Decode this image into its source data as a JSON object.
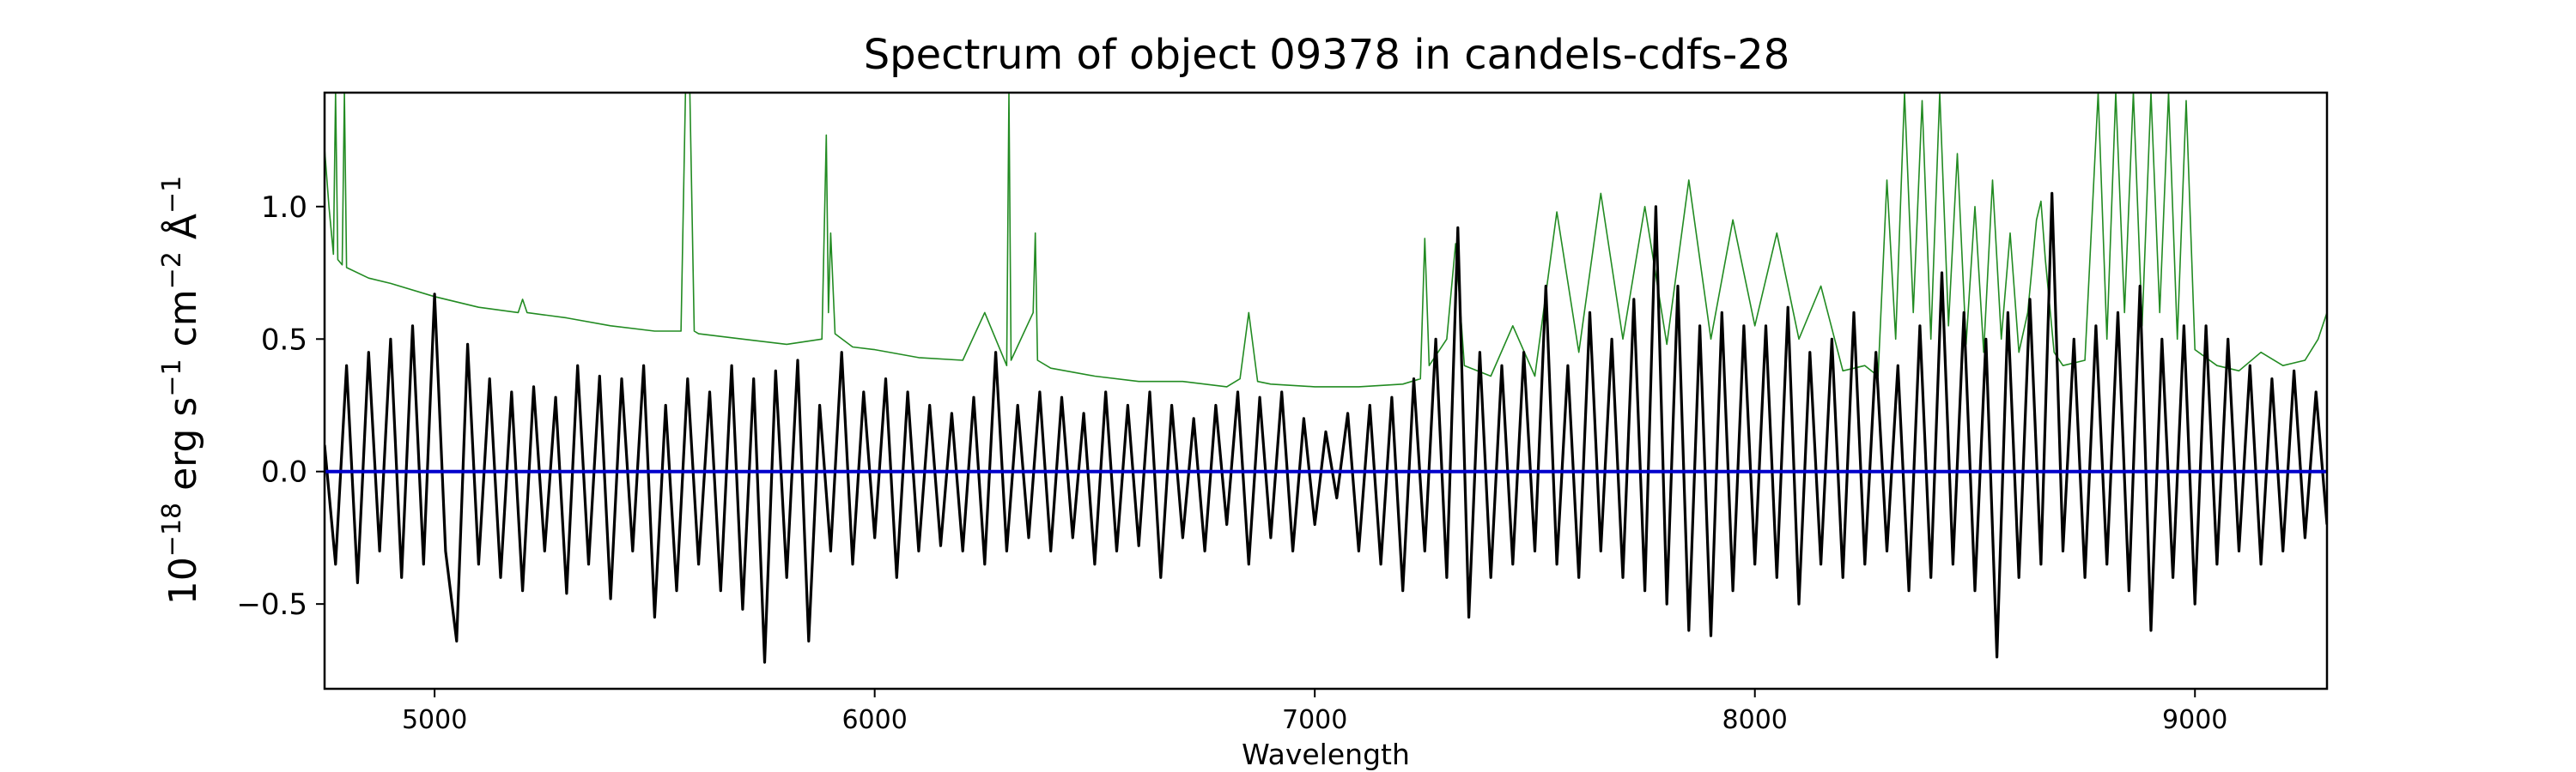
{
  "chart_data": {
    "type": "line",
    "title": "Spectrum of object 09378 in candels-cdfs-28",
    "xlabel": "Wavelength",
    "ylabel": {
      "base": "10",
      "exp1": "−18",
      "mid1": " erg s",
      "exp2": "−1",
      "mid2": " cm",
      "exp3": "−2",
      "mid3": " Å",
      "exp4": "−1"
    },
    "xlim": [
      4750,
      9300
    ],
    "ylim": [
      -0.82,
      1.43
    ],
    "x_ticks": [
      5000,
      6000,
      7000,
      8000,
      9000
    ],
    "x_tick_labels": [
      "5000",
      "6000",
      "7000",
      "8000",
      "9000"
    ],
    "y_ticks": [
      -0.5,
      0.0,
      0.5,
      1.0
    ],
    "y_tick_labels": [
      "−0.5",
      "0.0",
      "0.5",
      "1.0"
    ],
    "series": [
      {
        "color": "#228b22",
        "x": [
          4750,
          4760,
          4770,
          4775,
          4780,
          4790,
          4795,
          4800,
          4850,
          4900,
          5000,
          5100,
          5190,
          5200,
          5210,
          5300,
          5400,
          5500,
          5560,
          5570,
          5580,
          5590,
          5600,
          5700,
          5800,
          5880,
          5890,
          5895,
          5900,
          5910,
          5950,
          6000,
          6100,
          6200,
          6250,
          6300,
          6305,
          6310,
          6360,
          6365,
          6370,
          6400,
          6500,
          6600,
          6700,
          6800,
          6830,
          6850,
          6870,
          6900,
          7000,
          7100,
          7200,
          7240,
          7250,
          7260,
          7300,
          7320,
          7340,
          7400,
          7450,
          7500,
          7550,
          7600,
          7650,
          7700,
          7750,
          7800,
          7850,
          7900,
          7950,
          8000,
          8050,
          8100,
          8150,
          8200,
          8250,
          8280,
          8300,
          8320,
          8340,
          8360,
          8380,
          8400,
          8420,
          8440,
          8460,
          8480,
          8500,
          8520,
          8540,
          8560,
          8580,
          8600,
          8620,
          8640,
          8650,
          8660,
          8680,
          8700,
          8750,
          8780,
          8800,
          8820,
          8840,
          8860,
          8880,
          8900,
          8920,
          8940,
          8960,
          8980,
          9000,
          9050,
          9100,
          9150,
          9200,
          9250,
          9280,
          9300
        ],
        "y": [
          1.22,
          1.0,
          0.82,
          1.43,
          0.8,
          0.78,
          1.43,
          0.77,
          0.73,
          0.71,
          0.66,
          0.62,
          0.6,
          0.65,
          0.6,
          0.58,
          0.55,
          0.53,
          0.53,
          1.43,
          1.43,
          0.53,
          0.52,
          0.5,
          0.48,
          0.5,
          1.27,
          0.6,
          0.9,
          0.52,
          0.47,
          0.46,
          0.43,
          0.42,
          0.6,
          0.4,
          1.43,
          0.42,
          0.6,
          0.9,
          0.42,
          0.39,
          0.36,
          0.34,
          0.34,
          0.32,
          0.35,
          0.6,
          0.34,
          0.33,
          0.32,
          0.32,
          0.33,
          0.35,
          0.88,
          0.4,
          0.5,
          0.86,
          0.4,
          0.36,
          0.55,
          0.36,
          0.98,
          0.45,
          1.05,
          0.5,
          1.0,
          0.48,
          1.1,
          0.5,
          0.95,
          0.55,
          0.9,
          0.5,
          0.7,
          0.38,
          0.4,
          0.36,
          1.1,
          0.5,
          1.43,
          0.6,
          1.4,
          0.5,
          1.43,
          0.55,
          1.2,
          0.48,
          1.0,
          0.45,
          1.1,
          0.5,
          0.9,
          0.45,
          0.6,
          0.95,
          1.02,
          0.8,
          0.45,
          0.4,
          0.42,
          1.43,
          0.5,
          1.43,
          0.6,
          1.43,
          0.55,
          1.43,
          0.6,
          1.43,
          0.5,
          1.4,
          0.46,
          0.4,
          0.38,
          0.45,
          0.4,
          0.42,
          0.5,
          0.6
        ]
      },
      {
        "color": "#000000",
        "x": [
          4750,
          4775,
          4800,
          4825,
          4850,
          4875,
          4900,
          4925,
          4950,
          4975,
          5000,
          5025,
          5050,
          5075,
          5100,
          5125,
          5150,
          5175,
          5200,
          5225,
          5250,
          5275,
          5300,
          5325,
          5350,
          5375,
          5400,
          5425,
          5450,
          5475,
          5500,
          5525,
          5550,
          5575,
          5600,
          5625,
          5650,
          5675,
          5700,
          5725,
          5750,
          5775,
          5800,
          5825,
          5850,
          5875,
          5900,
          5925,
          5950,
          5975,
          6000,
          6025,
          6050,
          6075,
          6100,
          6125,
          6150,
          6175,
          6200,
          6225,
          6250,
          6275,
          6300,
          6325,
          6350,
          6375,
          6400,
          6425,
          6450,
          6475,
          6500,
          6525,
          6550,
          6575,
          6600,
          6625,
          6650,
          6675,
          6700,
          6725,
          6750,
          6775,
          6800,
          6825,
          6850,
          6875,
          6900,
          6925,
          6950,
          6975,
          7000,
          7025,
          7050,
          7075,
          7100,
          7125,
          7150,
          7175,
          7200,
          7225,
          7250,
          7275,
          7300,
          7325,
          7350,
          7375,
          7400,
          7425,
          7450,
          7475,
          7500,
          7525,
          7550,
          7575,
          7600,
          7625,
          7650,
          7675,
          7700,
          7725,
          7750,
          7775,
          7800,
          7825,
          7850,
          7875,
          7900,
          7925,
          7950,
          7975,
          8000,
          8025,
          8050,
          8075,
          8100,
          8125,
          8150,
          8175,
          8200,
          8225,
          8250,
          8275,
          8300,
          8325,
          8350,
          8375,
          8400,
          8425,
          8450,
          8475,
          8500,
          8525,
          8550,
          8575,
          8600,
          8625,
          8650,
          8675,
          8700,
          8725,
          8750,
          8775,
          8800,
          8825,
          8850,
          8875,
          8900,
          8925,
          8950,
          8975,
          9000,
          9025,
          9050,
          9075,
          9100,
          9125,
          9150,
          9175,
          9200,
          9225,
          9250,
          9275,
          9300
        ],
        "y": [
          0.1,
          -0.35,
          0.4,
          -0.42,
          0.45,
          -0.3,
          0.5,
          -0.4,
          0.55,
          -0.35,
          0.67,
          -0.3,
          -0.64,
          0.48,
          -0.35,
          0.35,
          -0.4,
          0.3,
          -0.45,
          0.32,
          -0.3,
          0.28,
          -0.46,
          0.4,
          -0.35,
          0.36,
          -0.48,
          0.35,
          -0.3,
          0.4,
          -0.55,
          0.25,
          -0.45,
          0.35,
          -0.35,
          0.3,
          -0.45,
          0.4,
          -0.52,
          0.35,
          -0.72,
          0.38,
          -0.4,
          0.42,
          -0.64,
          0.25,
          -0.3,
          0.45,
          -0.35,
          0.3,
          -0.25,
          0.35,
          -0.4,
          0.3,
          -0.3,
          0.25,
          -0.28,
          0.22,
          -0.3,
          0.28,
          -0.35,
          0.45,
          -0.3,
          0.25,
          -0.25,
          0.3,
          -0.3,
          0.28,
          -0.25,
          0.22,
          -0.35,
          0.3,
          -0.3,
          0.25,
          -0.28,
          0.3,
          -0.4,
          0.25,
          -0.25,
          0.2,
          -0.3,
          0.25,
          -0.2,
          0.3,
          -0.35,
          0.28,
          -0.25,
          0.3,
          -0.3,
          0.2,
          -0.2,
          0.15,
          -0.1,
          0.22,
          -0.3,
          0.25,
          -0.35,
          0.28,
          -0.45,
          0.35,
          -0.3,
          0.5,
          -0.4,
          0.92,
          -0.55,
          0.45,
          -0.4,
          0.4,
          -0.35,
          0.45,
          -0.3,
          0.7,
          -0.35,
          0.4,
          -0.4,
          0.6,
          -0.3,
          0.5,
          -0.4,
          0.65,
          -0.45,
          1.0,
          -0.5,
          0.7,
          -0.6,
          0.55,
          -0.62,
          0.6,
          -0.45,
          0.55,
          -0.35,
          0.55,
          -0.4,
          0.62,
          -0.5,
          0.45,
          -0.35,
          0.5,
          -0.4,
          0.6,
          -0.35,
          0.45,
          -0.3,
          0.4,
          -0.45,
          0.55,
          -0.4,
          0.75,
          -0.35,
          0.6,
          -0.45,
          0.5,
          -0.7,
          0.6,
          -0.4,
          0.65,
          -0.35,
          1.05,
          -0.3,
          0.5,
          -0.4,
          0.55,
          -0.35,
          0.6,
          -0.45,
          0.7,
          -0.6,
          0.5,
          -0.4,
          0.55,
          -0.5,
          0.55,
          -0.35,
          0.5,
          -0.3,
          0.4,
          -0.35,
          0.35,
          -0.3,
          0.38,
          -0.25,
          0.3,
          -0.2
        ]
      },
      {
        "color": "#0000cd",
        "x": [
          4750,
          9300
        ],
        "y": [
          0.0,
          0.0
        ]
      }
    ],
    "grid": false,
    "legend": "none"
  }
}
